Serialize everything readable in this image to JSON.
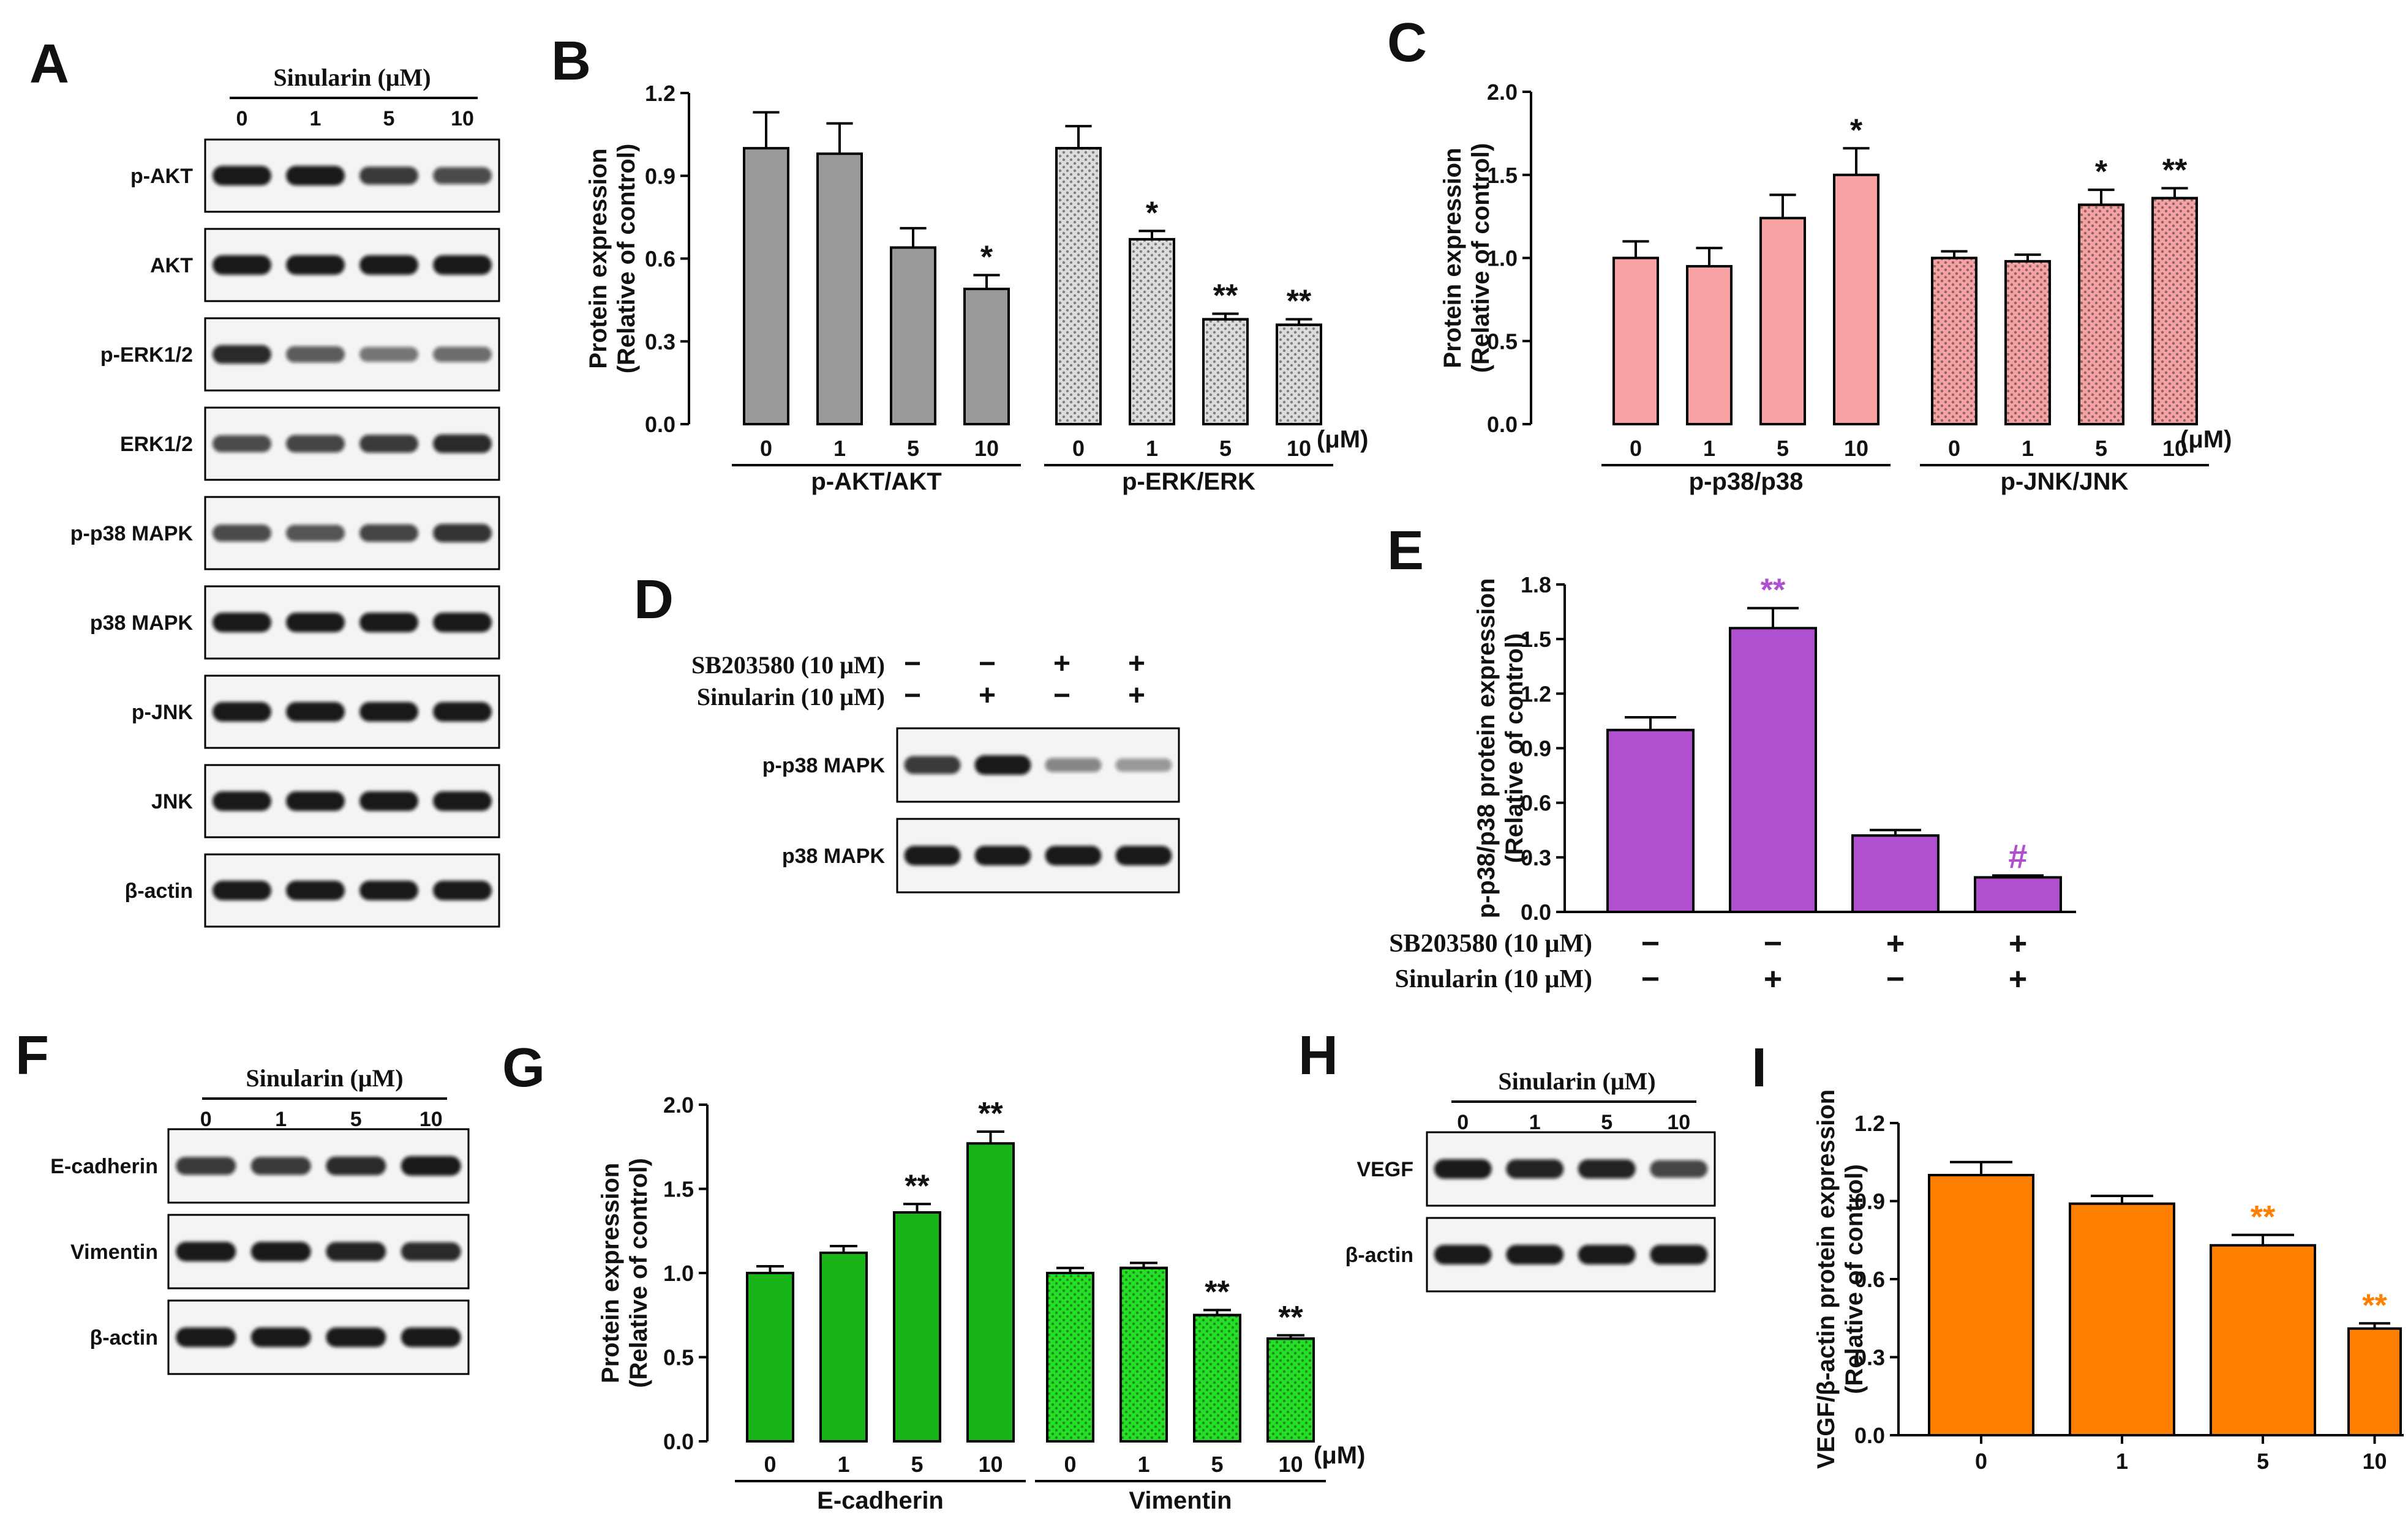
{
  "panel_letters": {
    "A": "A",
    "B": "B",
    "C": "C",
    "D": "D",
    "E": "E",
    "F": "F",
    "G": "G",
    "H": "H",
    "I": "I"
  },
  "colors": {
    "gray": "#9a9a9a",
    "lightgray": "#dcdcdc",
    "pink": "#f6a2a2",
    "purple": "#b04fd0",
    "green": "#18b418",
    "lightgreen": "#22e022",
    "orange": "#ff8000"
  },
  "blots": {
    "A": {
      "header": "Sinularin (μM)",
      "lanes": [
        "0",
        "1",
        "5",
        "10"
      ],
      "rows": [
        {
          "label": "p-AKT",
          "intensity": [
            1.0,
            1.0,
            0.8,
            0.7
          ]
        },
        {
          "label": "AKT",
          "intensity": [
            1.0,
            1.0,
            1.0,
            1.0
          ]
        },
        {
          "label": "p-ERK1/2",
          "intensity": [
            0.9,
            0.6,
            0.45,
            0.5
          ]
        },
        {
          "label": "ERK1/2",
          "intensity": [
            0.7,
            0.75,
            0.8,
            0.9
          ]
        },
        {
          "label": "p-p38 MAPK",
          "intensity": [
            0.7,
            0.65,
            0.75,
            0.85
          ]
        },
        {
          "label": "p38 MAPK",
          "intensity": [
            1.0,
            1.0,
            1.0,
            1.0
          ]
        },
        {
          "label": "p-JNK",
          "intensity": [
            1.0,
            1.0,
            1.0,
            1.0
          ]
        },
        {
          "label": "JNK",
          "intensity": [
            1.0,
            1.0,
            1.0,
            1.0
          ]
        },
        {
          "label": "β-actin",
          "intensity": [
            1.0,
            1.0,
            1.0,
            1.0
          ]
        }
      ]
    },
    "D": {
      "treatments": [
        {
          "label": "SB203580 (10 μM)",
          "signs": [
            "−",
            "−",
            "+",
            "+"
          ]
        },
        {
          "label": "Sinularin (10 μM)",
          "signs": [
            "−",
            "+",
            "−",
            "+"
          ]
        }
      ],
      "rows": [
        {
          "label": "p-p38 MAPK",
          "intensity": [
            0.8,
            1.0,
            0.35,
            0.25
          ]
        },
        {
          "label": "p38 MAPK",
          "intensity": [
            1.0,
            1.0,
            1.0,
            1.0
          ]
        }
      ]
    },
    "F": {
      "header": "Sinularin (μM)",
      "lanes": [
        "0",
        "1",
        "5",
        "10"
      ],
      "rows": [
        {
          "label": "E-cadherin",
          "intensity": [
            0.8,
            0.8,
            0.9,
            1.0
          ]
        },
        {
          "label": "Vimentin",
          "intensity": [
            1.0,
            1.0,
            0.95,
            0.9
          ]
        },
        {
          "label": "β-actin",
          "intensity": [
            1.0,
            1.0,
            1.0,
            1.0
          ]
        }
      ]
    },
    "H": {
      "header": "Sinularin (μM)",
      "lanes": [
        "0",
        "1",
        "5",
        "10"
      ],
      "rows": [
        {
          "label": "VEGF",
          "intensity": [
            1.0,
            0.95,
            0.95,
            0.75
          ]
        },
        {
          "label": "β-actin",
          "intensity": [
            1.0,
            1.0,
            1.0,
            1.0
          ]
        }
      ]
    }
  },
  "chart_data": [
    {
      "panel": "B",
      "type": "bar",
      "ylabel": "Protein expression (Relative of control)",
      "ylim": [
        0,
        1.2
      ],
      "yticks": [
        "0.0",
        "0.3",
        "0.6",
        "0.9",
        "1.2"
      ],
      "unit": "(μM)",
      "groups": [
        {
          "label": "p-AKT/AKT",
          "categories": [
            "0",
            "1",
            "5",
            "10"
          ],
          "values": [
            1.0,
            0.98,
            0.64,
            0.49
          ],
          "errors": [
            0.13,
            0.11,
            0.07,
            0.05
          ],
          "sig": [
            "",
            "",
            "",
            "*"
          ],
          "fill": "gray",
          "dotted": false
        },
        {
          "label": "p-ERK/ERK",
          "categories": [
            "0",
            "1",
            "5",
            "10"
          ],
          "values": [
            1.0,
            0.67,
            0.38,
            0.36
          ],
          "errors": [
            0.08,
            0.03,
            0.02,
            0.02
          ],
          "sig": [
            "",
            "*",
            "**",
            "**"
          ],
          "fill": "lightgray",
          "dotted": true
        }
      ]
    },
    {
      "panel": "C",
      "type": "bar",
      "ylabel": "Protein expression (Relative of control)",
      "ylim": [
        0,
        2.0
      ],
      "yticks": [
        "0.0",
        "0.5",
        "1.0",
        "1.5",
        "2.0"
      ],
      "unit": "(μM)",
      "groups": [
        {
          "label": "p-p38/p38",
          "categories": [
            "0",
            "1",
            "5",
            "10"
          ],
          "values": [
            1.0,
            0.95,
            1.24,
            1.5
          ],
          "errors": [
            0.1,
            0.11,
            0.14,
            0.16
          ],
          "sig": [
            "",
            "",
            "",
            "*"
          ],
          "fill": "pink",
          "dotted": false
        },
        {
          "label": "p-JNK/JNK",
          "categories": [
            "0",
            "1",
            "5",
            "10"
          ],
          "values": [
            1.0,
            0.98,
            1.32,
            1.36
          ],
          "errors": [
            0.04,
            0.04,
            0.09,
            0.06
          ],
          "sig": [
            "",
            "",
            "*",
            "**"
          ],
          "fill": "pink",
          "dotted": true
        }
      ]
    },
    {
      "panel": "E",
      "type": "bar",
      "ylabel": "p-p38/p38 protein expression (Relative of control)",
      "ylim": [
        0,
        1.8
      ],
      "yticks": [
        "0.0",
        "0.3",
        "0.6",
        "0.9",
        "1.2",
        "1.5",
        "1.8"
      ],
      "treatments": [
        {
          "label": "SB203580 (10 μM)",
          "signs": [
            "−",
            "−",
            "+",
            "+"
          ]
        },
        {
          "label": "Sinularin (10 μM)",
          "signs": [
            "−",
            "+",
            "−",
            "+"
          ]
        }
      ],
      "values": [
        1.0,
        1.56,
        0.42,
        0.19
      ],
      "errors": [
        0.07,
        0.11,
        0.03,
        0.01
      ],
      "sig": [
        "",
        "**",
        "",
        "#"
      ],
      "fill": "purple"
    },
    {
      "panel": "G",
      "type": "bar",
      "ylabel": "Protein expression (Relative of control)",
      "ylim": [
        0,
        2.0
      ],
      "yticks": [
        "0.0",
        "0.5",
        "1.0",
        "1.5",
        "2.0"
      ],
      "unit": "(μM)",
      "groups": [
        {
          "label": "E-cadherin",
          "categories": [
            "0",
            "1",
            "5",
            "10"
          ],
          "values": [
            1.0,
            1.12,
            1.36,
            1.77
          ],
          "errors": [
            0.04,
            0.04,
            0.05,
            0.07
          ],
          "sig": [
            "",
            "",
            "**",
            "**"
          ],
          "fill": "green",
          "dotted": false
        },
        {
          "label": "Vimentin",
          "categories": [
            "0",
            "1",
            "5",
            "10"
          ],
          "values": [
            1.0,
            1.03,
            0.75,
            0.61
          ],
          "errors": [
            0.03,
            0.03,
            0.03,
            0.02
          ],
          "sig": [
            "",
            "",
            "**",
            "**"
          ],
          "fill": "lightgreen",
          "dotted": true
        }
      ]
    },
    {
      "panel": "I",
      "type": "bar",
      "ylabel": "VEGF/β-actin protein expression (Relative of control)",
      "ylim": [
        0,
        1.2
      ],
      "yticks": [
        "0.0",
        "0.3",
        "0.6",
        "0.9",
        "1.2"
      ],
      "categories": [
        "0",
        "1",
        "5",
        "10"
      ],
      "values": [
        1.0,
        0.89,
        0.73,
        0.41
      ],
      "errors": [
        0.05,
        0.03,
        0.04,
        0.02
      ],
      "sig": [
        "",
        "",
        "**",
        "**"
      ],
      "fill": "orange"
    }
  ]
}
